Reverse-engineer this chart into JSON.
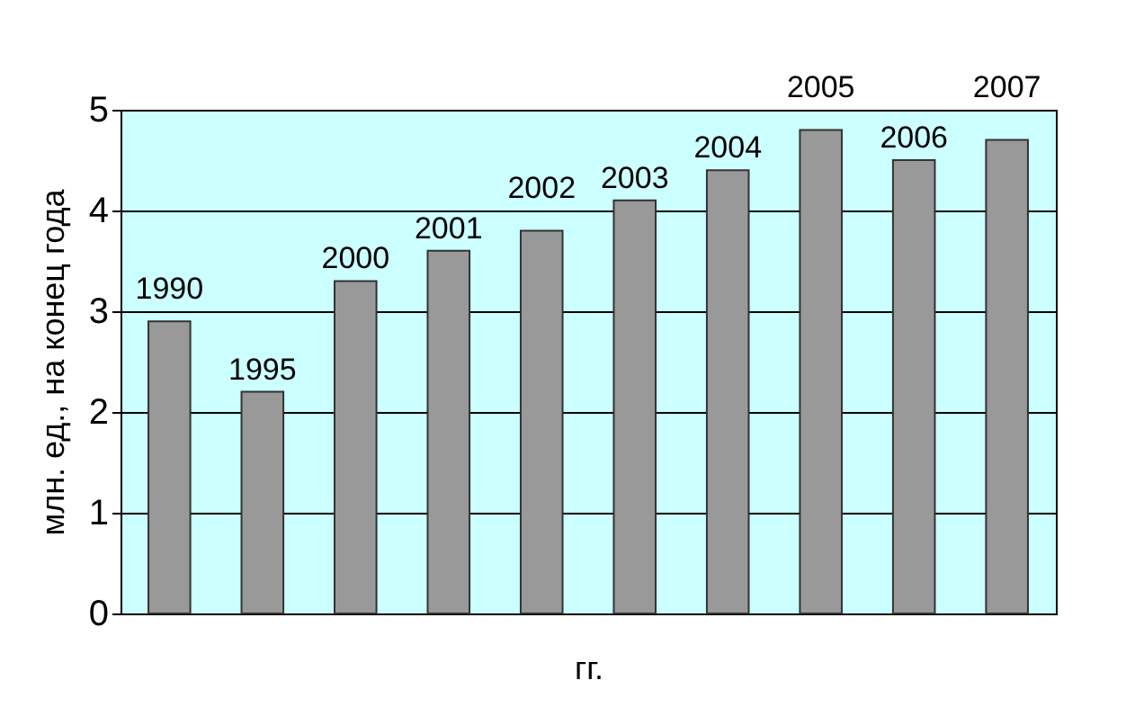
{
  "chart_data": {
    "type": "bar",
    "xlabel": "гг.",
    "ylabel": "млн. ед., на конец года",
    "categories": [
      "1990",
      "1995",
      "2000",
      "2001",
      "2002",
      "2003",
      "2004",
      "2005",
      "2006",
      "2007"
    ],
    "values": [
      2.9,
      2.2,
      3.3,
      3.6,
      3.8,
      4.1,
      4.4,
      4.8,
      4.5,
      4.7
    ],
    "color": "#999999",
    "ylim": [
      0,
      5
    ],
    "yticks": [
      0,
      1,
      2,
      3,
      4,
      5
    ],
    "grid": "y",
    "tick_labels": "y"
  }
}
